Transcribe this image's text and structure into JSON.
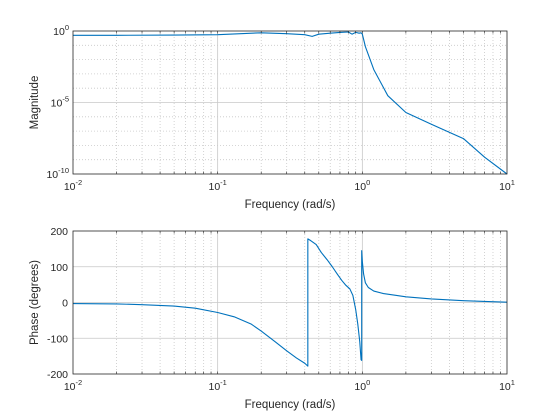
{
  "figure": {
    "line_color": "#0072BD",
    "axes_color": "#262626",
    "grid_color": "#c8c8c8"
  },
  "chart_data": [
    {
      "type": "line",
      "xlabel": "Frequency (rad/s)",
      "ylabel": "Magnitude",
      "xscale": "log",
      "yscale": "log",
      "xlim": [
        0.01,
        10
      ],
      "ylim": [
        1e-10,
        1
      ],
      "grid": "on (major and minor, dotted)",
      "xticks": [
        {
          "base": "10",
          "exp": "-2"
        },
        {
          "base": "10",
          "exp": "-1"
        },
        {
          "base": "10",
          "exp": "0"
        },
        {
          "base": "10",
          "exp": "1"
        }
      ],
      "yticks": [
        {
          "base": "10",
          "exp": "-10"
        },
        {
          "base": "10",
          "exp": "-5"
        },
        {
          "base": "10",
          "exp": "0"
        }
      ],
      "series": [
        {
          "x": [
            0.01,
            0.02,
            0.05,
            0.1,
            0.2,
            0.3,
            0.4,
            0.45,
            0.5,
            0.6,
            0.7,
            0.8,
            0.85,
            0.9,
            0.95,
            0.98,
            1.0,
            1.05,
            1.2,
            1.5,
            2,
            3,
            5,
            7,
            10
          ],
          "y": [
            0.5,
            0.5,
            0.52,
            0.55,
            0.75,
            0.65,
            0.55,
            0.42,
            0.6,
            0.7,
            0.8,
            0.85,
            0.6,
            0.8,
            0.7,
            0.75,
            0.6,
            0.08,
            0.002,
            3e-05,
            2e-06,
            3e-07,
            3e-08,
            1.5e-09,
            1e-10
          ]
        }
      ]
    },
    {
      "type": "line",
      "xlabel": "Frequency (rad/s)",
      "ylabel": "Phase (degrees)",
      "xscale": "log",
      "yscale": "linear",
      "xlim": [
        0.01,
        10
      ],
      "ylim": [
        -200,
        200
      ],
      "grid": "on (major and minor, dotted)",
      "xticks": [
        {
          "base": "10",
          "exp": "-2"
        },
        {
          "base": "10",
          "exp": "-1"
        },
        {
          "base": "10",
          "exp": "0"
        },
        {
          "base": "10",
          "exp": "1"
        }
      ],
      "yticks": [
        "-200",
        "-100",
        "0",
        "100",
        "200"
      ],
      "series": [
        {
          "x": [
            0.01,
            0.02,
            0.03,
            0.05,
            0.07,
            0.1,
            0.13,
            0.17,
            0.2,
            0.25,
            0.3,
            0.35,
            0.4,
            0.42,
            0.42,
            0.44,
            0.48,
            0.52,
            0.57,
            0.62,
            0.67,
            0.72,
            0.77,
            0.82,
            0.86,
            0.9,
            0.93,
            0.96,
            0.98,
            0.99,
            0.99,
            1.0,
            1.02,
            1.05,
            1.1,
            1.2,
            1.4,
            1.7,
            2,
            3,
            5,
            7,
            10
          ],
          "y": [
            -3,
            -4,
            -6,
            -10,
            -16,
            -28,
            -40,
            -60,
            -80,
            -110,
            -135,
            -155,
            -170,
            -178,
            178,
            173,
            162,
            140,
            120,
            100,
            80,
            62,
            48,
            38,
            20,
            -20,
            -60,
            -110,
            -160,
            -162,
            145,
            115,
            80,
            55,
            42,
            32,
            25,
            20,
            16,
            10,
            5,
            3,
            1
          ]
        }
      ]
    }
  ]
}
